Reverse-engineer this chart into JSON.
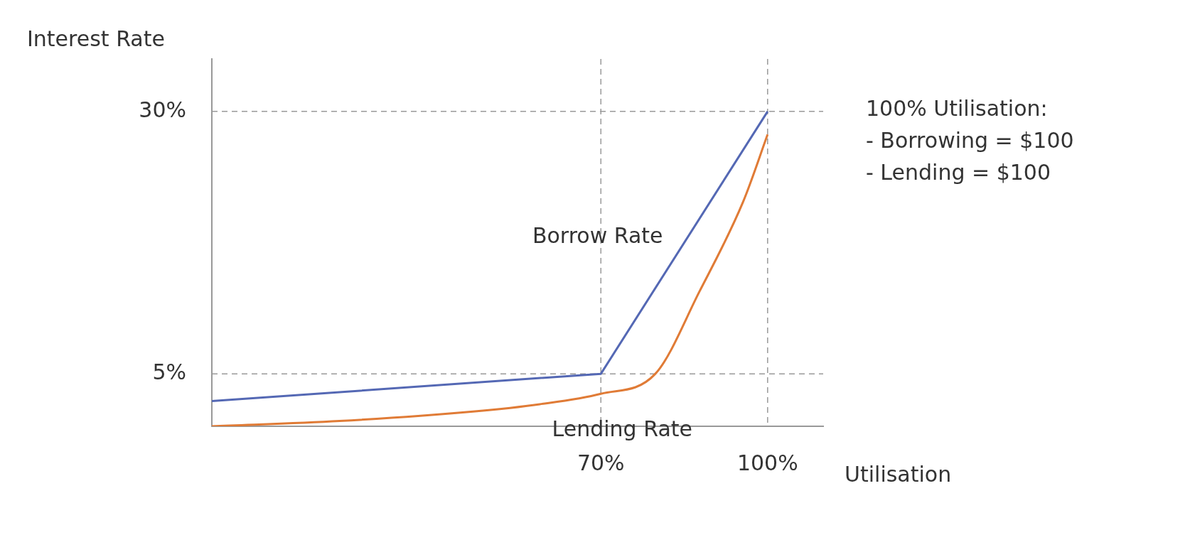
{
  "chart_data": {
    "type": "line",
    "xlabel": "Utilisation",
    "ylabel": "Interest Rate",
    "xlim": [
      0,
      110
    ],
    "ylim": [
      0,
      35
    ],
    "xticks": [
      {
        "value": 70,
        "label": "70%"
      },
      {
        "value": 100,
        "label": "100%"
      }
    ],
    "yticks": [
      {
        "value": 5,
        "label": "5%"
      },
      {
        "value": 30,
        "label": "30%"
      }
    ],
    "grid": false,
    "legend": false,
    "marker": "none",
    "line_style": "solid",
    "series": [
      {
        "name": "Borrow Rate",
        "color": "#5468b4",
        "x": [
          0,
          70,
          100
        ],
        "values": [
          2.4,
          5,
          30
        ]
      },
      {
        "name": "Lending Rate",
        "color": "#e07b36",
        "x": [
          0,
          23,
          47,
          59,
          70,
          79.8,
          87.7,
          95.6,
          100
        ],
        "values": [
          0,
          0.5,
          1.4,
          2.1,
          3.1,
          5,
          12.8,
          21.4,
          27.8
        ]
      }
    ],
    "ref_lines": [
      {
        "axis": "x",
        "value": 70,
        "color": "#999999",
        "line_style": "dashed"
      },
      {
        "axis": "x",
        "value": 100,
        "color": "#999999",
        "line_style": "dashed"
      },
      {
        "axis": "y",
        "value": 5,
        "color": "#999999",
        "line_style": "dashed"
      },
      {
        "axis": "y",
        "value": 30,
        "color": "#999999",
        "line_style": "dashed"
      }
    ],
    "annotations": [
      "100% Utilisation:\n- Borrowing = $100\n- Lending = $100"
    ]
  }
}
